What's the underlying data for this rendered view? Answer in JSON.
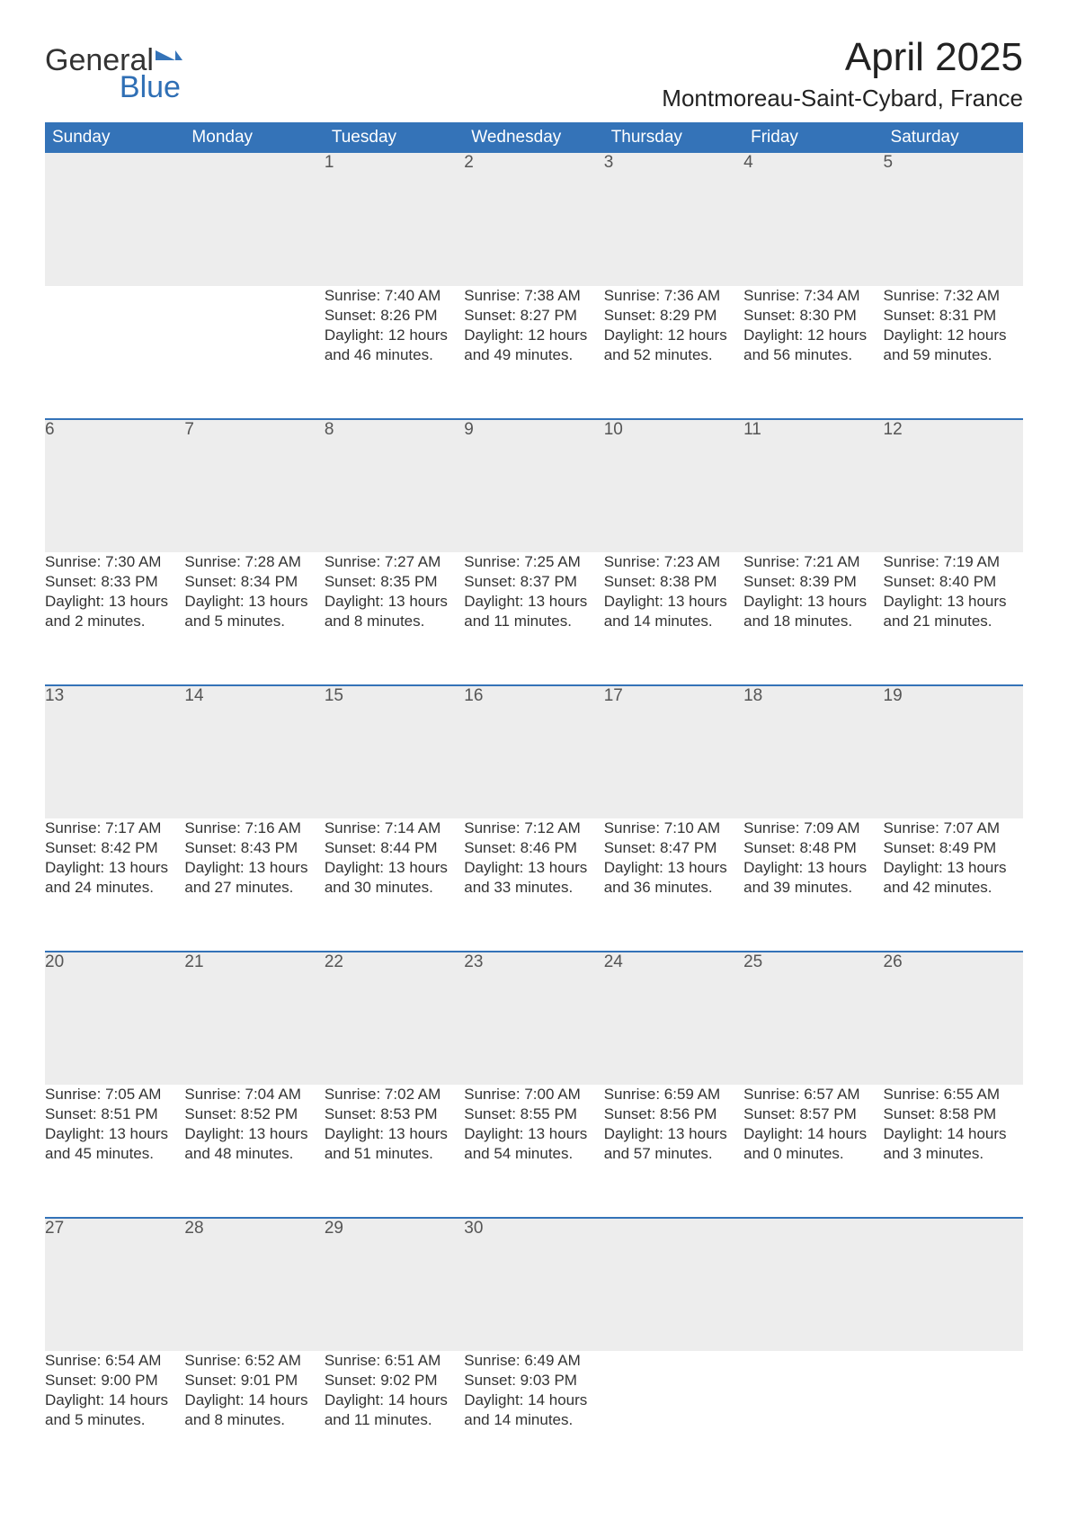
{
  "logo": {
    "text_general": "General",
    "text_blue": "Blue",
    "flag_color": "#3473b8"
  },
  "header": {
    "month_title": "April 2025",
    "location": "Montmoreau-Saint-Cybard, France"
  },
  "calendar": {
    "day_headers": [
      "Sunday",
      "Monday",
      "Tuesday",
      "Wednesday",
      "Thursday",
      "Friday",
      "Saturday"
    ],
    "header_bg": "#3473b8",
    "header_fg": "#ffffff",
    "daynum_bg": "#ededed",
    "row_border_color": "#3473b8",
    "text_color": "#333333",
    "weeks": [
      [
        null,
        null,
        {
          "day": "1",
          "sunrise": "Sunrise: 7:40 AM",
          "sunset": "Sunset: 8:26 PM",
          "daylight1": "Daylight: 12 hours",
          "daylight2": "and 46 minutes."
        },
        {
          "day": "2",
          "sunrise": "Sunrise: 7:38 AM",
          "sunset": "Sunset: 8:27 PM",
          "daylight1": "Daylight: 12 hours",
          "daylight2": "and 49 minutes."
        },
        {
          "day": "3",
          "sunrise": "Sunrise: 7:36 AM",
          "sunset": "Sunset: 8:29 PM",
          "daylight1": "Daylight: 12 hours",
          "daylight2": "and 52 minutes."
        },
        {
          "day": "4",
          "sunrise": "Sunrise: 7:34 AM",
          "sunset": "Sunset: 8:30 PM",
          "daylight1": "Daylight: 12 hours",
          "daylight2": "and 56 minutes."
        },
        {
          "day": "5",
          "sunrise": "Sunrise: 7:32 AM",
          "sunset": "Sunset: 8:31 PM",
          "daylight1": "Daylight: 12 hours",
          "daylight2": "and 59 minutes."
        }
      ],
      [
        {
          "day": "6",
          "sunrise": "Sunrise: 7:30 AM",
          "sunset": "Sunset: 8:33 PM",
          "daylight1": "Daylight: 13 hours",
          "daylight2": "and 2 minutes."
        },
        {
          "day": "7",
          "sunrise": "Sunrise: 7:28 AM",
          "sunset": "Sunset: 8:34 PM",
          "daylight1": "Daylight: 13 hours",
          "daylight2": "and 5 minutes."
        },
        {
          "day": "8",
          "sunrise": "Sunrise: 7:27 AM",
          "sunset": "Sunset: 8:35 PM",
          "daylight1": "Daylight: 13 hours",
          "daylight2": "and 8 minutes."
        },
        {
          "day": "9",
          "sunrise": "Sunrise: 7:25 AM",
          "sunset": "Sunset: 8:37 PM",
          "daylight1": "Daylight: 13 hours",
          "daylight2": "and 11 minutes."
        },
        {
          "day": "10",
          "sunrise": "Sunrise: 7:23 AM",
          "sunset": "Sunset: 8:38 PM",
          "daylight1": "Daylight: 13 hours",
          "daylight2": "and 14 minutes."
        },
        {
          "day": "11",
          "sunrise": "Sunrise: 7:21 AM",
          "sunset": "Sunset: 8:39 PM",
          "daylight1": "Daylight: 13 hours",
          "daylight2": "and 18 minutes."
        },
        {
          "day": "12",
          "sunrise": "Sunrise: 7:19 AM",
          "sunset": "Sunset: 8:40 PM",
          "daylight1": "Daylight: 13 hours",
          "daylight2": "and 21 minutes."
        }
      ],
      [
        {
          "day": "13",
          "sunrise": "Sunrise: 7:17 AM",
          "sunset": "Sunset: 8:42 PM",
          "daylight1": "Daylight: 13 hours",
          "daylight2": "and 24 minutes."
        },
        {
          "day": "14",
          "sunrise": "Sunrise: 7:16 AM",
          "sunset": "Sunset: 8:43 PM",
          "daylight1": "Daylight: 13 hours",
          "daylight2": "and 27 minutes."
        },
        {
          "day": "15",
          "sunrise": "Sunrise: 7:14 AM",
          "sunset": "Sunset: 8:44 PM",
          "daylight1": "Daylight: 13 hours",
          "daylight2": "and 30 minutes."
        },
        {
          "day": "16",
          "sunrise": "Sunrise: 7:12 AM",
          "sunset": "Sunset: 8:46 PM",
          "daylight1": "Daylight: 13 hours",
          "daylight2": "and 33 minutes."
        },
        {
          "day": "17",
          "sunrise": "Sunrise: 7:10 AM",
          "sunset": "Sunset: 8:47 PM",
          "daylight1": "Daylight: 13 hours",
          "daylight2": "and 36 minutes."
        },
        {
          "day": "18",
          "sunrise": "Sunrise: 7:09 AM",
          "sunset": "Sunset: 8:48 PM",
          "daylight1": "Daylight: 13 hours",
          "daylight2": "and 39 minutes."
        },
        {
          "day": "19",
          "sunrise": "Sunrise: 7:07 AM",
          "sunset": "Sunset: 8:49 PM",
          "daylight1": "Daylight: 13 hours",
          "daylight2": "and 42 minutes."
        }
      ],
      [
        {
          "day": "20",
          "sunrise": "Sunrise: 7:05 AM",
          "sunset": "Sunset: 8:51 PM",
          "daylight1": "Daylight: 13 hours",
          "daylight2": "and 45 minutes."
        },
        {
          "day": "21",
          "sunrise": "Sunrise: 7:04 AM",
          "sunset": "Sunset: 8:52 PM",
          "daylight1": "Daylight: 13 hours",
          "daylight2": "and 48 minutes."
        },
        {
          "day": "22",
          "sunrise": "Sunrise: 7:02 AM",
          "sunset": "Sunset: 8:53 PM",
          "daylight1": "Daylight: 13 hours",
          "daylight2": "and 51 minutes."
        },
        {
          "day": "23",
          "sunrise": "Sunrise: 7:00 AM",
          "sunset": "Sunset: 8:55 PM",
          "daylight1": "Daylight: 13 hours",
          "daylight2": "and 54 minutes."
        },
        {
          "day": "24",
          "sunrise": "Sunrise: 6:59 AM",
          "sunset": "Sunset: 8:56 PM",
          "daylight1": "Daylight: 13 hours",
          "daylight2": "and 57 minutes."
        },
        {
          "day": "25",
          "sunrise": "Sunrise: 6:57 AM",
          "sunset": "Sunset: 8:57 PM",
          "daylight1": "Daylight: 14 hours",
          "daylight2": "and 0 minutes."
        },
        {
          "day": "26",
          "sunrise": "Sunrise: 6:55 AM",
          "sunset": "Sunset: 8:58 PM",
          "daylight1": "Daylight: 14 hours",
          "daylight2": "and 3 minutes."
        }
      ],
      [
        {
          "day": "27",
          "sunrise": "Sunrise: 6:54 AM",
          "sunset": "Sunset: 9:00 PM",
          "daylight1": "Daylight: 14 hours",
          "daylight2": "and 5 minutes."
        },
        {
          "day": "28",
          "sunrise": "Sunrise: 6:52 AM",
          "sunset": "Sunset: 9:01 PM",
          "daylight1": "Daylight: 14 hours",
          "daylight2": "and 8 minutes."
        },
        {
          "day": "29",
          "sunrise": "Sunrise: 6:51 AM",
          "sunset": "Sunset: 9:02 PM",
          "daylight1": "Daylight: 14 hours",
          "daylight2": "and 11 minutes."
        },
        {
          "day": "30",
          "sunrise": "Sunrise: 6:49 AM",
          "sunset": "Sunset: 9:03 PM",
          "daylight1": "Daylight: 14 hours",
          "daylight2": "and 14 minutes."
        },
        null,
        null,
        null
      ]
    ]
  }
}
